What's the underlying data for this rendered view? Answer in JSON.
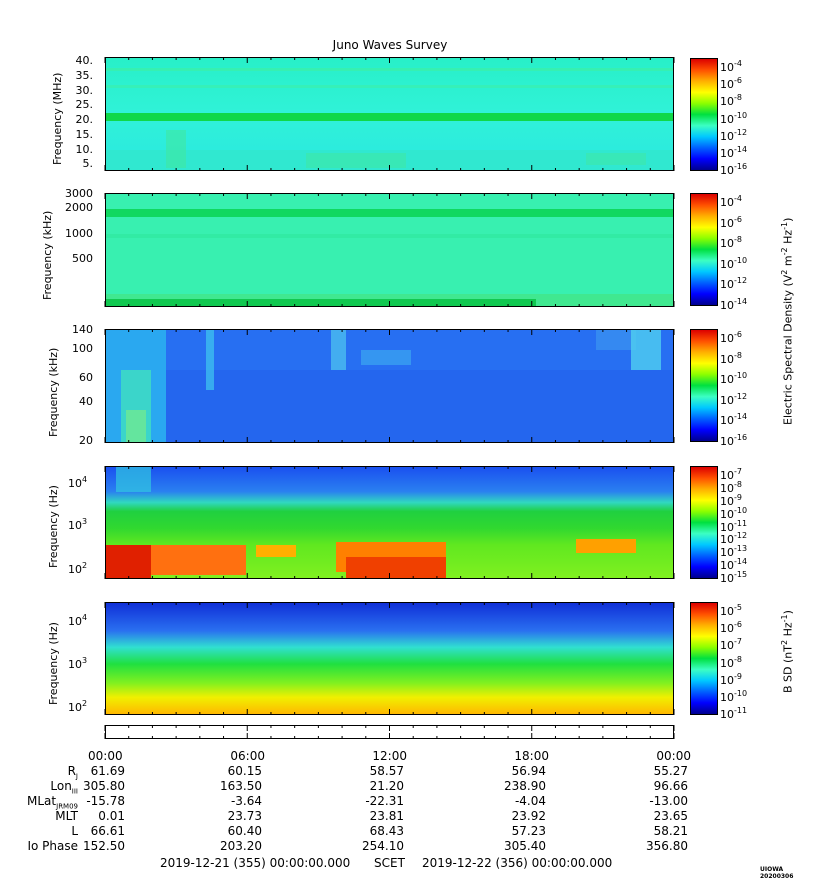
{
  "title": "Juno Waves Survey",
  "colors": {
    "jet": [
      "#00008f",
      "#0000ff",
      "#0060ff",
      "#00c8ff",
      "#3cffc3",
      "#00e040",
      "#8cff00",
      "#ffff00",
      "#ffb000",
      "#ff5000",
      "#dc0000"
    ],
    "panel1_bg": "#30f0d0",
    "panel2_bg": "#40f0b8",
    "panel3_bg": "#2a6cf0",
    "panel4_top": "#2060f0",
    "panel5_top": "#1030e0"
  },
  "panels": [
    {
      "ylabel": "Frequency (MHz)",
      "yticks": [
        "40.",
        "35.",
        "30.",
        "25.",
        "20.",
        "15.",
        "10.",
        "5."
      ],
      "cbar_ticks": [
        "10-4",
        "10-6",
        "10-8",
        "10-10",
        "10-12",
        "10-14",
        "10-16"
      ]
    },
    {
      "ylabel": "Frequency (kHz)",
      "yticks": [
        "3000",
        "2000",
        "1000",
        "500"
      ],
      "cbar_ticks": [
        "10-4",
        "10-6",
        "10-8",
        "10-10",
        "10-12",
        "10-14"
      ]
    },
    {
      "ylabel": "Frequency (kHz)",
      "yticks": [
        "140",
        "100",
        "60",
        "40",
        "20"
      ],
      "cbar_ticks": [
        "10-6",
        "10-8",
        "10-10",
        "10-12",
        "10-14",
        "10-16"
      ]
    },
    {
      "ylabel": "Frequency (Hz)",
      "yticks": [
        "10",
        "10",
        "10"
      ],
      "ytick_exps": [
        "4",
        "3",
        "2"
      ],
      "cbar_ticks": [
        "10-7",
        "10-8",
        "10-9",
        "10-10",
        "10-11",
        "10-12",
        "10-13",
        "10-14",
        "10-15"
      ]
    },
    {
      "ylabel": "Frequency (Hz)",
      "yticks": [
        "10",
        "10",
        "10"
      ],
      "ytick_exps": [
        "4",
        "3",
        "2"
      ],
      "cbar_ticks": [
        "10-5",
        "10-6",
        "10-7",
        "10-8",
        "10-9",
        "10-10",
        "10-11"
      ]
    }
  ],
  "cbar_labels": {
    "e_field": "Electric Spectral Density (V",
    "e_field_tail": " m",
    "e_field_end": " Hz",
    "b_field": "B SD (nT",
    "b_field_end": " Hz"
  },
  "ephemeris": {
    "labels": [
      "R",
      "Lon",
      "MLat",
      "MLT",
      "L",
      "Io Phase"
    ],
    "label_subs": [
      "J",
      "III",
      "JRM09",
      "",
      "",
      ""
    ],
    "times": [
      "00:00",
      "06:00",
      "12:00",
      "18:00",
      "00:00"
    ],
    "rows": [
      [
        "61.69",
        "60.15",
        "58.57",
        "56.94",
        "55.27"
      ],
      [
        "305.80",
        "163.50",
        "21.20",
        "238.90",
        "96.66"
      ],
      [
        "-15.78",
        "-3.64",
        "-22.31",
        "-4.04",
        "-13.00"
      ],
      [
        "0.01",
        "23.73",
        "23.81",
        "23.92",
        "23.65"
      ],
      [
        "66.61",
        "60.40",
        "68.43",
        "57.23",
        "58.21"
      ],
      [
        "152.50",
        "203.20",
        "254.10",
        "305.40",
        "356.80"
      ]
    ]
  },
  "footer": {
    "start": "2019-12-21 (355) 00:00:00.000",
    "scet": "SCET",
    "end": "2019-12-22 (356) 00:00:00.000",
    "stamp": "UIOWA 20200306"
  }
}
